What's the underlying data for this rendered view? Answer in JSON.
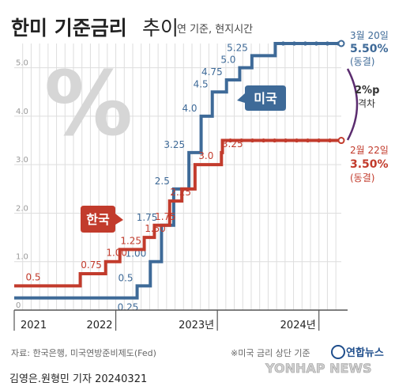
{
  "header": {
    "title_bold": "한미 기준금리",
    "title_light": "추이",
    "subtitle": "연 기준, 현지시간"
  },
  "watermark_symbol": "%",
  "annotations": {
    "us_label": "미국",
    "kr_label": "한국",
    "us_latest_date": "3월 20일",
    "us_latest_value": "5.50%",
    "us_latest_note": "(동결)",
    "kr_latest_date": "2월 22일",
    "kr_latest_value": "3.50%",
    "kr_latest_note": "(동결)",
    "gap_value": "2%p",
    "gap_label": "격차",
    "footnote": "※미국 금리 상단 기준"
  },
  "footer": {
    "source": "자료: 한국은행, 미국연방준비제도(Fed)",
    "logo_text": "연합뉴스",
    "watermark": "YONHAP NEWS",
    "credit": "김영은.원형민 기자  20240321"
  },
  "colors": {
    "us": "#3e6a98",
    "kr": "#c23b2c",
    "grid": "#dedede",
    "axis": "#555555",
    "title": "#222222"
  },
  "chart_data": {
    "type": "line",
    "step": true,
    "ylim": [
      0,
      5.5
    ],
    "yticks": [
      {
        "label": "0",
        "value": 0
      },
      {
        "label": "1.0",
        "value": 1.0
      },
      {
        "label": "2.0",
        "value": 2.0
      },
      {
        "label": "3.0",
        "value": 3.0
      },
      {
        "label": "4.0",
        "value": 4.0
      },
      {
        "label": "5.0",
        "value": 5.0
      }
    ],
    "x_range": [
      2021.0,
      2024.22
    ],
    "x_ticks": [
      {
        "label": "2021",
        "value": 2021.0
      },
      {
        "label": "2022",
        "value": 2022.0
      },
      {
        "label": "2023년",
        "value": 2023.0
      },
      {
        "label": "2024년",
        "value": 2024.0
      }
    ],
    "series": [
      {
        "name": "미국",
        "color": "#3e6a98",
        "points": [
          {
            "x": 2021.0,
            "y": 0.25,
            "label": ""
          },
          {
            "x": 2022.21,
            "y": 0.5,
            "label": "0.5"
          },
          {
            "x": 2022.34,
            "y": 1.0,
            "label": "1.00"
          },
          {
            "x": 2022.45,
            "y": 1.75,
            "label": "1.75"
          },
          {
            "x": 2022.57,
            "y": 2.5,
            "label": "2.5"
          },
          {
            "x": 2022.72,
            "y": 3.25,
            "label": "3.25"
          },
          {
            "x": 2022.84,
            "y": 4.0,
            "label": "4.0"
          },
          {
            "x": 2022.95,
            "y": 4.5,
            "label": "4.5"
          },
          {
            "x": 2023.09,
            "y": 4.75,
            "label": "4.75"
          },
          {
            "x": 2023.22,
            "y": 5.0,
            "label": "5.0"
          },
          {
            "x": 2023.34,
            "y": 5.25,
            "label": "5.25"
          },
          {
            "x": 2023.57,
            "y": 5.5,
            "label": ""
          },
          {
            "x": 2024.22,
            "y": 5.5,
            "label": ""
          }
        ],
        "first_label": {
          "x": 2022.12,
          "y": 0.25,
          "label": "0.25"
        }
      },
      {
        "name": "한국",
        "color": "#c23b2c",
        "points": [
          {
            "x": 2021.0,
            "y": 0.5,
            "label": "0.5"
          },
          {
            "x": 2021.65,
            "y": 0.75,
            "label": "0.75"
          },
          {
            "x": 2021.9,
            "y": 1.0,
            "label": "1.00"
          },
          {
            "x": 2022.04,
            "y": 1.25,
            "label": "1.25"
          },
          {
            "x": 2022.28,
            "y": 1.5,
            "label": "1.50"
          },
          {
            "x": 2022.38,
            "y": 1.75,
            "label": "1.75"
          },
          {
            "x": 2022.53,
            "y": 2.25,
            "label": "2.25"
          },
          {
            "x": 2022.65,
            "y": 2.5,
            "label": ""
          },
          {
            "x": 2022.78,
            "y": 3.0,
            "label": "3.0"
          },
          {
            "x": 2023.04,
            "y": 3.25,
            "label": "3.25"
          },
          {
            "x": 2023.05,
            "y": 3.5,
            "label": ""
          },
          {
            "x": 2024.22,
            "y": 3.5,
            "label": ""
          }
        ]
      }
    ]
  }
}
